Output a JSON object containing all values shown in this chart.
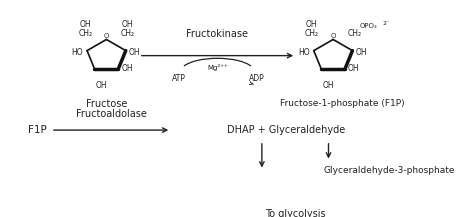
{
  "bg_color": "#ffffff",
  "text_color": "#222222",
  "arrow_color": "#222222",
  "fructose_label": "Fructose",
  "f1p_label": "Fructose-1-phosphate (F1P)",
  "enzyme1_label": "Fructokinase",
  "cofactor_label": "Mg²⁺⁺",
  "atp_label": "ATP",
  "adp_label": "ADP",
  "f1p_short": "F1P",
  "enzyme2_label": "Fructoaldolase",
  "dhap_label": "DHAP + Glyceraldehyde",
  "g3p_label": "Glyceraldehyde-3-phosphate",
  "glycolysis_label": "To glycolysis",
  "fontsize_main": 7,
  "fontsize_small": 5.5,
  "fontsize_enzyme": 7,
  "fontsize_chem": 5.5
}
